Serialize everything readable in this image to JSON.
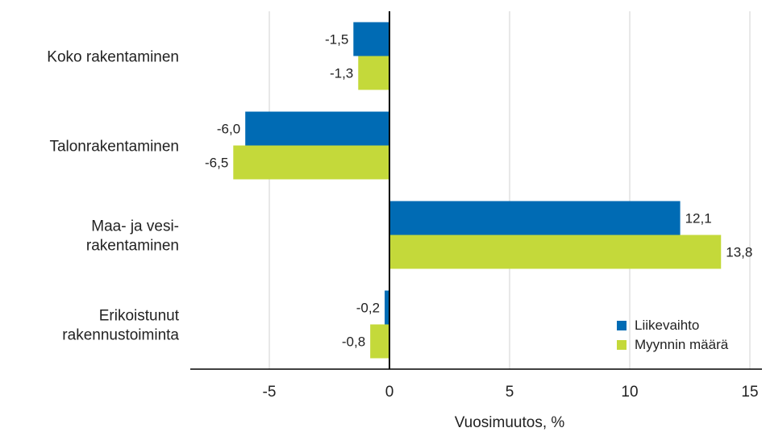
{
  "chart_data": {
    "type": "bar",
    "orientation": "horizontal",
    "categories": [
      [
        "Koko rakentaminen"
      ],
      [
        "Talonrakentaminen"
      ],
      [
        "Maa- ja vesi-",
        "rakentaminen"
      ],
      [
        "Erikoistunut",
        "rakennustoiminta"
      ]
    ],
    "series": [
      {
        "name": "Liikevaihto",
        "color": "#006bb4",
        "values": [
          -1.5,
          -6.0,
          12.1,
          -0.2
        ],
        "labels": [
          "-1,5",
          "-6,0",
          "12,1",
          "-0,2"
        ]
      },
      {
        "name": "Myynnin määrä",
        "color": "#c4d93a",
        "values": [
          -1.3,
          -6.5,
          13.8,
          -0.8
        ],
        "labels": [
          "-1,3",
          "-6,5",
          "13,8",
          "-0,8"
        ]
      }
    ],
    "x_ticks": [
      -5,
      0,
      5,
      10,
      15
    ],
    "x_tick_labels": [
      "-5",
      "0",
      "5",
      "10",
      "15"
    ],
    "xlim": [
      -8.3,
      15.3
    ],
    "xlabel": "Vuosimuutos, %",
    "grid": true,
    "legend_position": "bottom-right"
  }
}
